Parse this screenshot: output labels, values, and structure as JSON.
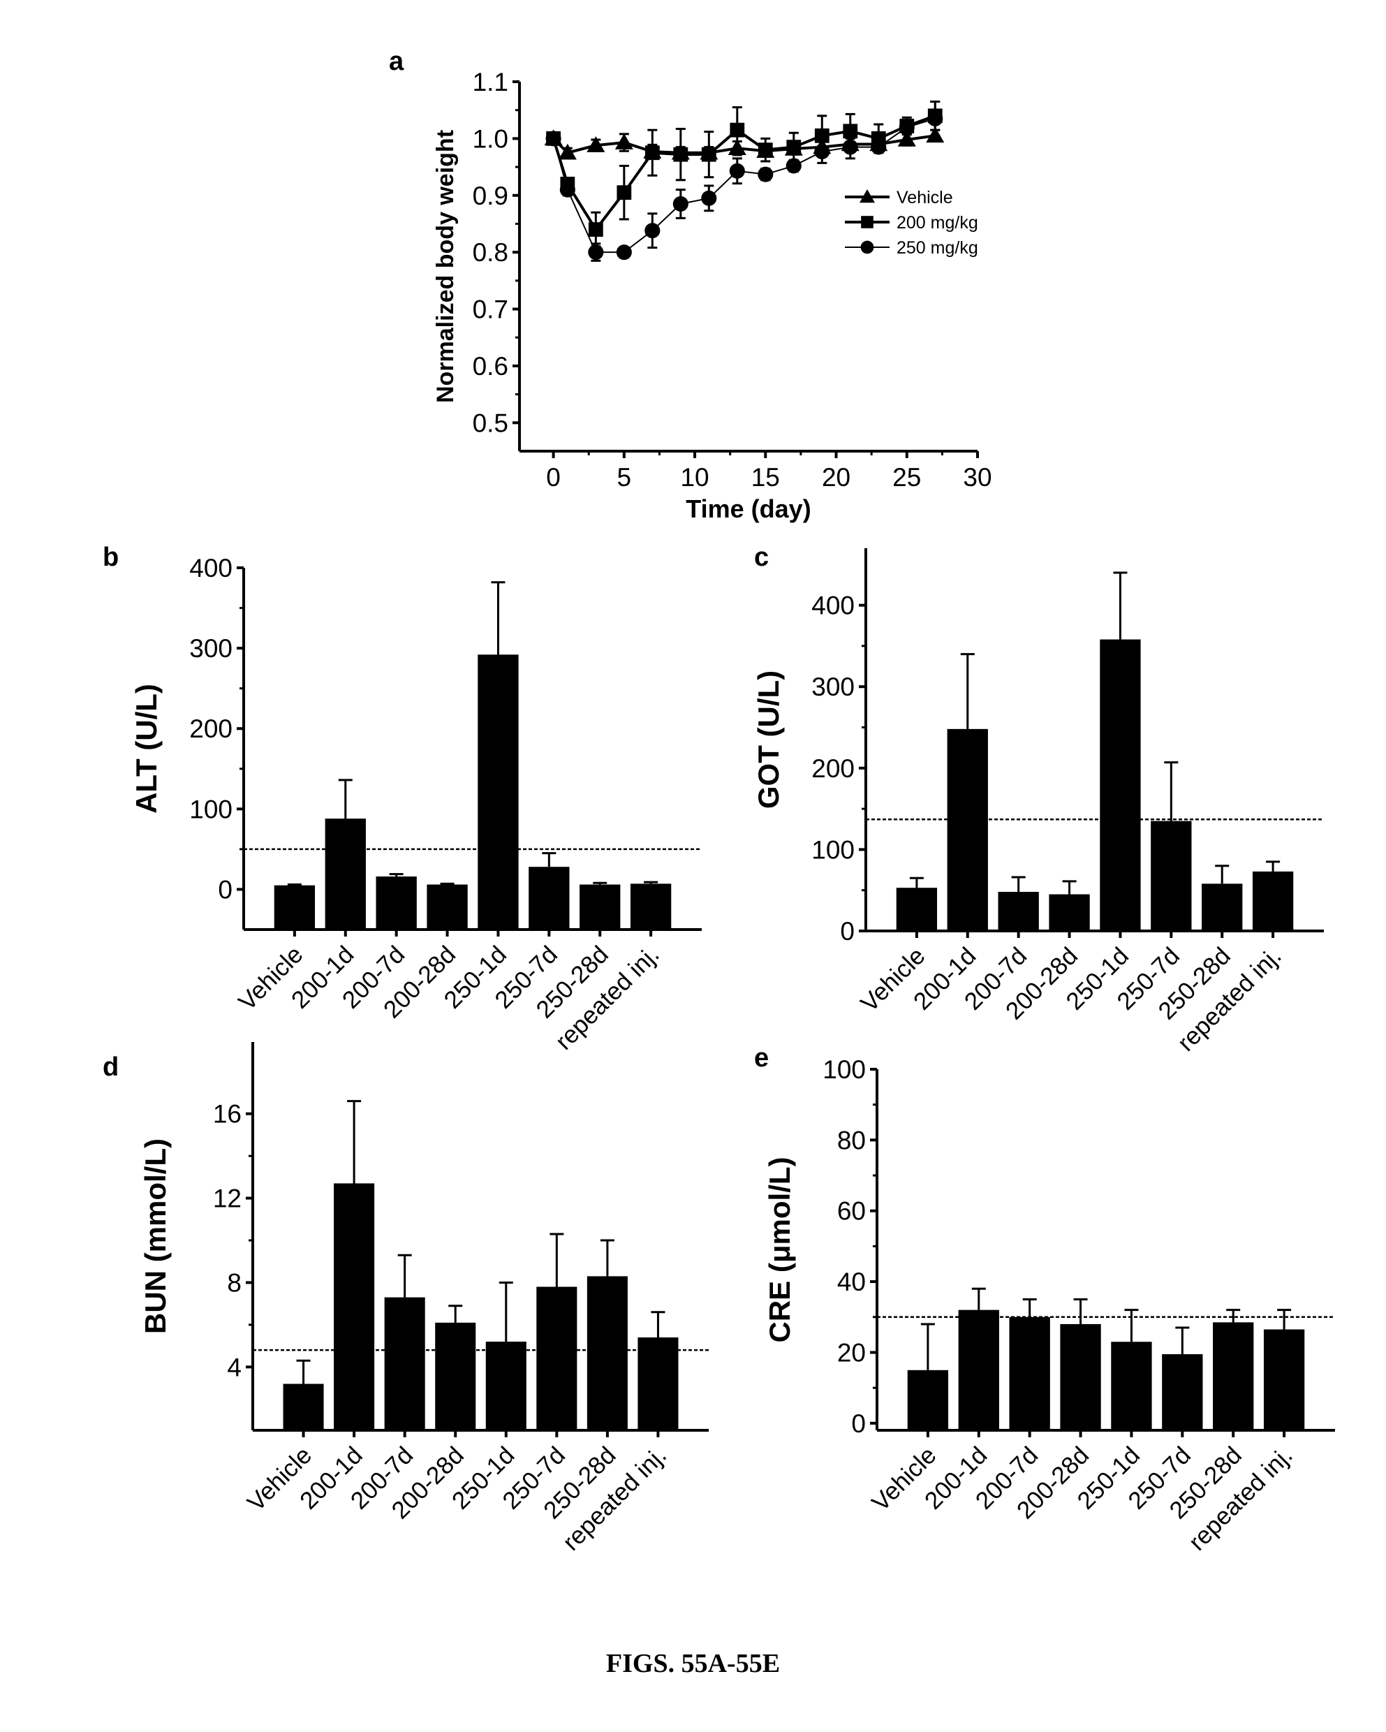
{
  "caption": "FIGS. 55A-55E",
  "chart_data": [
    {
      "panel": "a",
      "type": "line",
      "xlabel": "Time (day)",
      "ylabel": "Normalized body weight",
      "xlim": [
        -2.4,
        30
      ],
      "ylim": [
        0.45,
        1.1
      ],
      "xticks": [
        0,
        5,
        10,
        15,
        20,
        25,
        30
      ],
      "yticks": [
        0.5,
        0.6,
        0.7,
        0.8,
        0.9,
        1.0,
        1.1
      ],
      "legend_position": "right",
      "x": [
        0,
        1,
        3,
        5,
        7,
        9,
        11,
        13,
        15,
        17,
        19,
        21,
        23,
        25,
        27
      ],
      "series": [
        {
          "name": "Vehicle",
          "marker": "triangle",
          "values": [
            1.0,
            0.975,
            0.988,
            0.993,
            0.977,
            0.975,
            0.975,
            0.983,
            0.978,
            0.982,
            0.985,
            0.99,
            0.99,
            0.998,
            1.005
          ],
          "errors": [
            0.005,
            0.008,
            0.01,
            0.015,
            0.012,
            0.01,
            0.01,
            0.012,
            0.01,
            0.01,
            0.01,
            0.01,
            0.01,
            0.01,
            0.01
          ]
        },
        {
          "name": "200 mg/kg",
          "marker": "square",
          "values": [
            1.0,
            0.92,
            0.84,
            0.905,
            0.975,
            0.972,
            0.972,
            1.015,
            0.98,
            0.985,
            1.005,
            1.013,
            1.0,
            1.022,
            1.04
          ],
          "errors": [
            0.005,
            0.01,
            0.03,
            0.047,
            0.04,
            0.045,
            0.04,
            0.04,
            0.02,
            0.025,
            0.035,
            0.03,
            0.025,
            0.015,
            0.025
          ]
        },
        {
          "name": "250 mg/kg",
          "marker": "circle",
          "values": [
            1.0,
            0.91,
            0.8,
            0.8,
            0.838,
            0.885,
            0.895,
            0.943,
            0.937,
            0.952,
            0.977,
            0.985,
            0.985,
            1.02,
            1.035
          ],
          "errors": [
            0.005,
            0.01,
            0.015,
            0.008,
            0.03,
            0.025,
            0.022,
            0.022,
            0.01,
            0.01,
            0.02,
            0.02,
            0.01,
            0.01,
            0.03
          ]
        }
      ]
    },
    {
      "panel": "b",
      "type": "bar",
      "ylabel": "ALT (U/L)",
      "ylim": [
        -50,
        400
      ],
      "yticks": [
        0,
        100,
        200,
        300,
        400
      ],
      "reference_line": 50,
      "categories": [
        "Vehicle",
        "200-1d",
        "200-7d",
        "200-28d",
        "250-1d",
        "250-7d",
        "250-28d",
        "repeated inj."
      ],
      "values": [
        5,
        88,
        16,
        6,
        292,
        28,
        6,
        7
      ],
      "errors": [
        1,
        48,
        3,
        1,
        90,
        17,
        2,
        2
      ]
    },
    {
      "panel": "c",
      "type": "bar",
      "ylabel": "GOT (U/L)",
      "ylim": [
        0,
        470
      ],
      "yticks": [
        0,
        100,
        200,
        300,
        400
      ],
      "reference_line": 137,
      "categories": [
        "Vehicle",
        "200-1d",
        "200-7d",
        "200-28d",
        "250-1d",
        "250-7d",
        "250-28d",
        "repeated inj."
      ],
      "values": [
        53,
        248,
        48,
        45,
        358,
        135,
        58,
        73
      ],
      "errors": [
        12,
        92,
        18,
        16,
        82,
        72,
        22,
        12
      ]
    },
    {
      "panel": "d",
      "type": "bar",
      "ylabel": "BUN (mmol/L)",
      "ylim": [
        1,
        19.4
      ],
      "yticks": [
        4,
        8,
        12,
        16
      ],
      "reference_line": 4.8,
      "categories": [
        "Vehicle",
        "200-1d",
        "200-7d",
        "200-28d",
        "250-1d",
        "250-7d",
        "250-28d",
        "repeated inj."
      ],
      "values": [
        3.2,
        12.7,
        7.3,
        6.1,
        5.2,
        7.8,
        8.3,
        5.4
      ],
      "errors": [
        1.1,
        3.9,
        2.0,
        0.8,
        2.8,
        2.5,
        1.7,
        1.2
      ]
    },
    {
      "panel": "e",
      "type": "bar",
      "ylabel": "CRE (μmol/L)",
      "ylim": [
        -2,
        100
      ],
      "yticks": [
        0,
        20,
        40,
        60,
        80,
        100
      ],
      "reference_line": 30,
      "categories": [
        "Vehicle",
        "200-1d",
        "200-7d",
        "200-28d",
        "250-1d",
        "250-7d",
        "250-28d",
        "repeated inj."
      ],
      "values": [
        15,
        32,
        30,
        28,
        23,
        19.5,
        28.5,
        26.5
      ],
      "errors": [
        13,
        6,
        5,
        7,
        9,
        7.5,
        3.5,
        5.5
      ]
    }
  ]
}
